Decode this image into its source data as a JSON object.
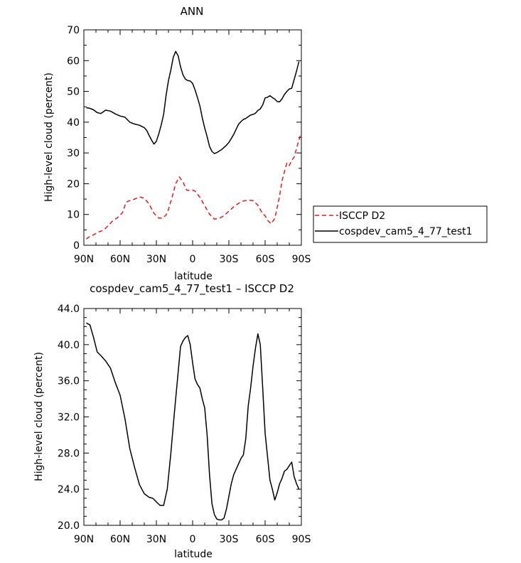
{
  "chart_data": [
    {
      "type": "line",
      "title": "ANN",
      "xlabel": "latitude",
      "ylabel": "High-level cloud (percent)",
      "xlim": [
        90,
        -90
      ],
      "ylim": [
        0,
        70
      ],
      "xticks": [
        90,
        60,
        30,
        0,
        -30,
        -60,
        -90
      ],
      "xtick_labels": [
        "90N",
        "60N",
        "30N",
        "0",
        "30S",
        "60S",
        "90S"
      ],
      "yticks": [
        0,
        10,
        20,
        30,
        40,
        50,
        60,
        70
      ],
      "ytick_labels": [
        "0",
        "10",
        "20",
        "30",
        "40",
        "50",
        "60",
        "70"
      ],
      "grid": false,
      "legend": "right, outside plot",
      "series": [
        {
          "name": "ISCCP D2",
          "color": "#e41a1c",
          "style": "dashed",
          "x": [
            88,
            86,
            82,
            78,
            74,
            70,
            66,
            62,
            58,
            55,
            52,
            48,
            44,
            40,
            36,
            32,
            28,
            25,
            22,
            20,
            17,
            14,
            11,
            8,
            5,
            2,
            0,
            -2,
            -6,
            -10,
            -14,
            -18,
            -22,
            -26,
            -30,
            -34,
            -38,
            -42,
            -46,
            -50,
            -54,
            -58,
            -60,
            -62,
            -65,
            -68,
            -70,
            -72,
            -74,
            -76,
            -78,
            -80,
            -82,
            -84,
            -86,
            -89
          ],
          "values": [
            2.0,
            2.6,
            3.4,
            4.3,
            4.8,
            6.3,
            8.0,
            9.0,
            10.6,
            14.0,
            14.5,
            15.0,
            15.7,
            15.3,
            13.4,
            10.4,
            8.8,
            8.8,
            9.8,
            11.6,
            15.6,
            20.0,
            22.2,
            20.6,
            17.9,
            17.8,
            17.9,
            17.6,
            15.6,
            12.8,
            10.1,
            8.5,
            8.7,
            9.6,
            11.1,
            12.5,
            13.6,
            14.4,
            14.7,
            14.5,
            13.0,
            10.2,
            9.6,
            8.1,
            7.0,
            8.7,
            12.3,
            16.1,
            20.9,
            23.9,
            26.7,
            25.9,
            27.6,
            28.6,
            31.5,
            35.6
          ]
        },
        {
          "name": "cospdev_cam5_4_77_test1",
          "color": "#000000",
          "style": "solid",
          "x": [
            88,
            85,
            82,
            79,
            76,
            72,
            68,
            64,
            60,
            56,
            52,
            48,
            44,
            40,
            38,
            36,
            34,
            32,
            30,
            28,
            26,
            24,
            22,
            20,
            18,
            16,
            14,
            12,
            10,
            8,
            6,
            4,
            2,
            0,
            -2,
            -4,
            -6,
            -8,
            -10,
            -12,
            -14,
            -16,
            -18,
            -20,
            -22,
            -24,
            -26,
            -28,
            -30,
            -32,
            -34,
            -36,
            -38,
            -40,
            -42,
            -44,
            -46,
            -48,
            -50,
            -52,
            -54,
            -56,
            -58,
            -60,
            -62,
            -64,
            -66,
            -68,
            -70,
            -72,
            -74,
            -76,
            -78,
            -80,
            -82,
            -84,
            -86,
            -88
          ],
          "values": [
            44.7,
            44.5,
            44.0,
            43.1,
            42.8,
            43.9,
            43.6,
            42.7,
            42.0,
            41.6,
            40.0,
            39.4,
            39.0,
            38.2,
            37.3,
            35.7,
            34.2,
            32.9,
            33.8,
            36.2,
            39.1,
            42.5,
            48.6,
            53.5,
            57.0,
            61.1,
            63.0,
            61.6,
            58.0,
            55.4,
            54.0,
            53.5,
            53.4,
            52.6,
            50.5,
            48.0,
            45.3,
            41.4,
            38.1,
            35.3,
            32.1,
            30.5,
            29.8,
            30.1,
            30.6,
            31.1,
            31.8,
            32.5,
            33.4,
            34.7,
            36.0,
            37.7,
            39.3,
            40.2,
            40.9,
            41.2,
            41.8,
            42.3,
            42.5,
            42.9,
            43.8,
            44.3,
            45.6,
            47.9,
            48.1,
            48.6,
            48.0,
            47.5,
            46.7,
            46.6,
            47.6,
            49.0,
            50.0,
            50.8,
            51.0,
            53.8,
            56.6,
            59.7
          ]
        }
      ]
    },
    {
      "type": "line",
      "title": "cospdev_cam5_4_77_test1 – ISCCP D2",
      "xlabel": "latitude",
      "ylabel": "High-level cloud (percent)",
      "xlim": [
        90,
        -90
      ],
      "ylim": [
        20,
        44
      ],
      "xticks": [
        90,
        60,
        30,
        0,
        -30,
        -60,
        -90
      ],
      "xtick_labels": [
        "90N",
        "60N",
        "30N",
        "0",
        "30S",
        "60S",
        "90S"
      ],
      "yticks": [
        20,
        24,
        28,
        32,
        36,
        40,
        44
      ],
      "ytick_labels": [
        "20.0",
        "24.0",
        "28.0",
        "32.0",
        "36.0",
        "40.0",
        "44.0"
      ],
      "grid": false,
      "legend": "none",
      "series": [
        {
          "name": "",
          "color": "#000000",
          "style": "solid",
          "x": [
            88,
            85,
            82,
            79,
            76,
            72,
            68,
            64,
            60,
            56,
            52,
            48,
            44,
            40,
            36,
            33,
            30,
            27,
            24,
            21,
            18,
            15,
            12,
            10,
            8,
            6,
            4,
            2,
            0,
            -2,
            -4,
            -6,
            -8,
            -10,
            -12,
            -14,
            -16,
            -18,
            -20,
            -22,
            -24,
            -26,
            -28,
            -30,
            -32,
            -34,
            -36,
            -38,
            -40,
            -42,
            -44,
            -46,
            -48,
            -50,
            -52,
            -54,
            -56,
            -58,
            -60,
            -62,
            -64,
            -66,
            -68,
            -70,
            -72,
            -74,
            -76,
            -78,
            -80,
            -82,
            -84,
            -86,
            -88
          ],
          "values": [
            42.4,
            42.2,
            40.8,
            39.2,
            38.8,
            38.2,
            37.4,
            35.8,
            34.4,
            31.8,
            28.5,
            26.4,
            24.5,
            23.5,
            23.1,
            23.0,
            22.6,
            22.2,
            22.2,
            24.0,
            28.0,
            32.6,
            36.9,
            39.8,
            40.4,
            40.8,
            41.0,
            40.0,
            38.0,
            36.2,
            35.6,
            35.2,
            34.0,
            33.0,
            30.0,
            25.6,
            22.4,
            21.2,
            20.7,
            20.6,
            20.6,
            20.8,
            21.8,
            23.2,
            24.6,
            25.6,
            26.2,
            26.8,
            27.4,
            27.8,
            29.6,
            33.2,
            35.2,
            37.6,
            39.6,
            41.2,
            40.0,
            35.2,
            30.2,
            27.6,
            25.0,
            24.0,
            22.8,
            23.6,
            24.6,
            25.2,
            26.0,
            26.2,
            26.6,
            27.0,
            25.4,
            24.6,
            24.0
          ]
        }
      ]
    }
  ]
}
